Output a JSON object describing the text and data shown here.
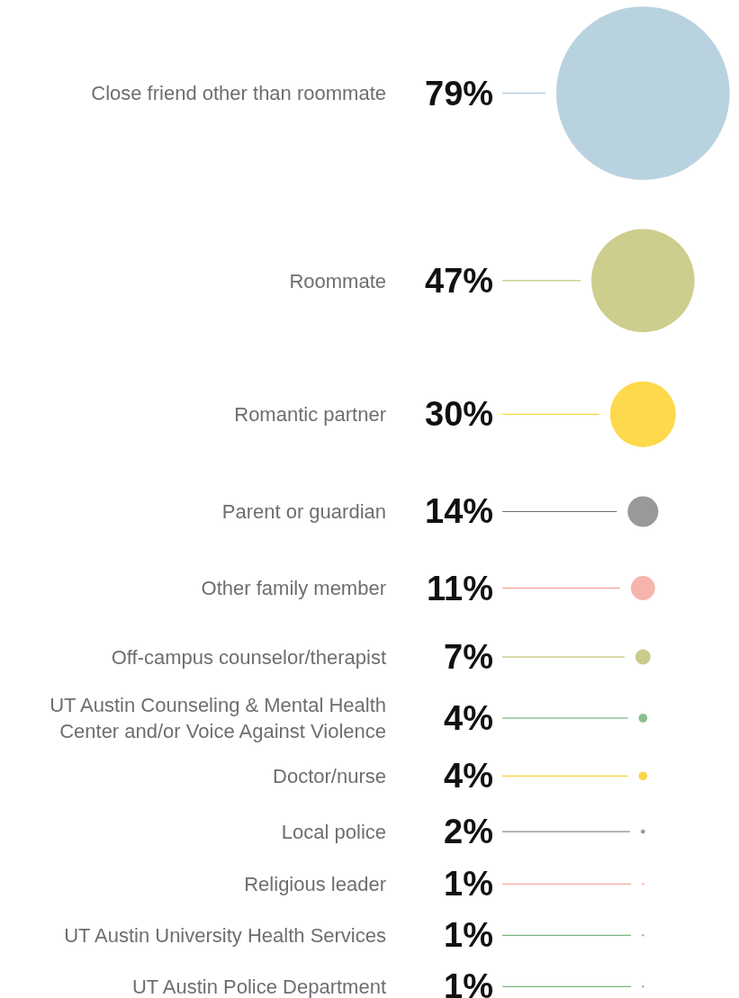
{
  "chart_data": {
    "type": "other",
    "categories": [
      "Close friend other than roommate",
      "Roommate",
      "Romantic partner",
      "Parent or guardian",
      "Other family member",
      "Off-campus counselor/therapist",
      "UT Austin Counseling & Mental Health Center and/or Voice Against Violence",
      "Doctor/nurse",
      "Local police",
      "Religious leader",
      "UT Austin University Health Services",
      "UT Austin Police Department"
    ],
    "values": [
      79,
      47,
      30,
      14,
      11,
      7,
      4,
      4,
      2,
      1,
      1,
      1
    ],
    "value_labels": [
      "79%",
      "47%",
      "30%",
      "14%",
      "11%",
      "7%",
      "4%",
      "4%",
      "2%",
      "1%",
      "1%",
      "1%"
    ],
    "colors": [
      "#9bbfd3",
      "#b8b85c",
      "#fdc900",
      "#6d6e71",
      "#f4948a",
      "#b5b55a",
      "#5ba35e",
      "#f5c400",
      "#6d6e71",
      "#f4948a",
      "#5ba35e",
      "#5ba35e"
    ]
  }
}
